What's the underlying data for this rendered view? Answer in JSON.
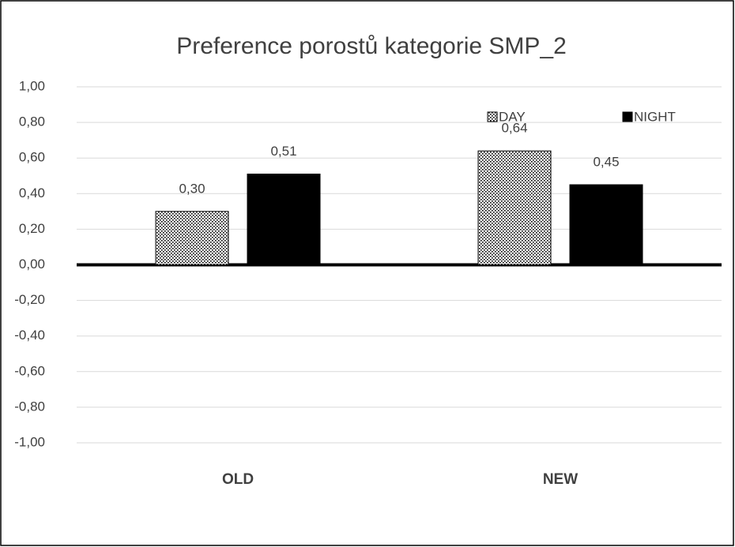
{
  "chart_data": {
    "type": "bar",
    "title": "Preference porostů kategorie SMP_2",
    "categories": [
      "OLD",
      "NEW"
    ],
    "series": [
      {
        "name": "DAY",
        "color": "#000000",
        "pattern": "dots",
        "values": [
          0.3,
          0.64
        ],
        "value_labels": [
          "0,30",
          "0,64"
        ]
      },
      {
        "name": "NIGHT",
        "color": "#000000",
        "values": [
          0.51,
          0.45
        ],
        "value_labels": [
          "0,51",
          "0,45"
        ]
      }
    ],
    "ylim": [
      -1,
      1
    ],
    "yticks": [
      {
        "value": -1,
        "label": "-1,00"
      },
      {
        "value": -0.8,
        "label": "-0,80"
      },
      {
        "value": -0.6,
        "label": "-0,60"
      },
      {
        "value": -0.4,
        "label": "-0,40"
      },
      {
        "value": -0.2,
        "label": "-0,20"
      },
      {
        "value": 0,
        "label": "0,00"
      },
      {
        "value": 0.2,
        "label": "0,20"
      },
      {
        "value": 0.4,
        "label": "0,40"
      },
      {
        "value": 0.6,
        "label": "0,60"
      },
      {
        "value": 0.8,
        "label": "0,80"
      },
      {
        "value": 1,
        "label": "1,00"
      }
    ],
    "grid": true,
    "legend": "top right"
  }
}
